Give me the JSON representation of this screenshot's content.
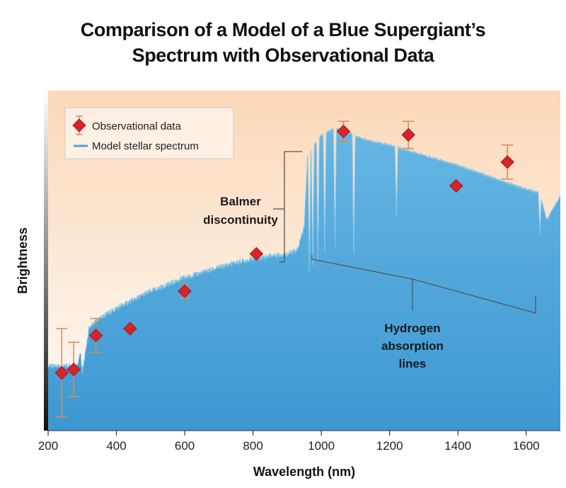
{
  "chart_data": {
    "type": "scatter",
    "title_lines": [
      "Comparison of a Model of a Blue Supergiant’s",
      "Spectrum with Observational Data"
    ],
    "xlabel": "Wavelength (nm)",
    "ylabel": "Brightness",
    "xlim": [
      200,
      1700
    ],
    "ylim": [
      0,
      100
    ],
    "x_ticks": [
      200,
      400,
      600,
      800,
      1000,
      1200,
      1400,
      1600
    ],
    "grid": false,
    "legend_position": "top-left",
    "legend": [
      {
        "label": "Observational data",
        "marker": "red-diamond-with-error-bars"
      },
      {
        "label": "Model stellar spectrum",
        "marker": "blue-line"
      }
    ],
    "series": [
      {
        "name": "Observational data",
        "points": [
          {
            "x": 240,
            "y": 17,
            "err": 13
          },
          {
            "x": 275,
            "y": 18,
            "err": 8
          },
          {
            "x": 340,
            "y": 28,
            "err": 5
          },
          {
            "x": 440,
            "y": 30,
            "err": 0
          },
          {
            "x": 600,
            "y": 41,
            "err": 2
          },
          {
            "x": 810,
            "y": 52,
            "err": 0
          },
          {
            "x": 1065,
            "y": 88,
            "err": 3
          },
          {
            "x": 1255,
            "y": 87,
            "err": 4
          },
          {
            "x": 1395,
            "y": 72,
            "err": 0
          },
          {
            "x": 1545,
            "y": 79,
            "err": 5
          }
        ]
      },
      {
        "name": "Model stellar spectrum",
        "x": [
          200,
          285,
          295,
          300,
          320,
          350,
          400,
          450,
          500,
          550,
          600,
          650,
          700,
          750,
          800,
          850,
          900,
          930,
          950,
          960,
          1000,
          1040,
          1080,
          1100,
          1150,
          1200,
          1300,
          1400,
          1500,
          1600,
          1640,
          1660,
          1700
        ],
        "y": [
          19,
          19,
          23,
          17,
          30,
          33,
          36,
          38.5,
          41,
          43,
          45,
          46.5,
          48,
          49.5,
          50.5,
          51.5,
          52,
          53,
          60,
          81,
          87,
          89,
          88,
          86.5,
          85,
          84,
          81,
          78,
          74.5,
          71,
          70,
          62,
          69
        ],
        "absorption_lines_x": [
          965,
          975,
          990,
          1010,
          1040,
          1095,
          1220,
          1640
        ]
      }
    ],
    "annotations": [
      {
        "lines": [
          "Balmer",
          "discontinuity"
        ]
      },
      {
        "lines": [
          "Hydrogen",
          "absorption",
          "lines"
        ]
      }
    ],
    "colors": {
      "spectrum_fill": "#4aa3d8",
      "spectrum_line": "#8ac6e8",
      "marker": "#d8232a",
      "error_bar": "#d98a55",
      "background_top": "#fbd8b8",
      "background_bottom": "#fefbf6"
    }
  }
}
